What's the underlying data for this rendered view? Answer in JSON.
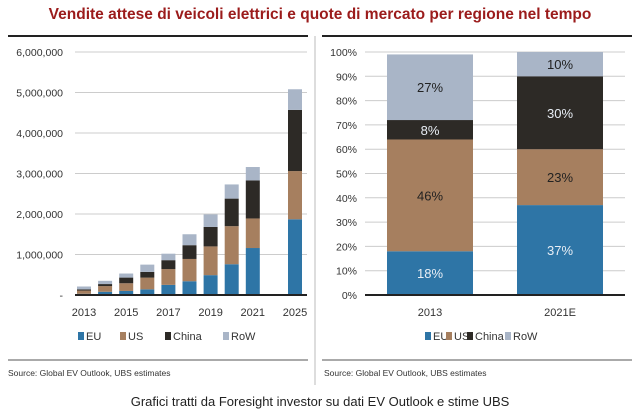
{
  "title": "Vendite attese di veicoli elettrici e quote di mercato per regione nel tempo",
  "caption": "Grafici tratti da Foresight investor su dati EV Outlook e stime UBS",
  "colors": {
    "EU": "#2e75a6",
    "US": "#a67f5f",
    "China": "#2d2a26",
    "RoW": "#a9b5c7",
    "title": "#9b1b1b"
  },
  "chart_data": [
    {
      "type": "bar",
      "stacked": true,
      "categories": [
        "2013",
        "2014",
        "2015",
        "2016",
        "2017",
        "2018",
        "2019",
        "2020",
        "2021",
        "2025"
      ],
      "tick_labels": [
        "2013",
        "2015",
        "2017",
        "2019",
        "2021",
        "2025"
      ],
      "ylim": [
        0,
        6000000
      ],
      "yticks": [
        "-",
        "1,000,000",
        "2,000,000",
        "3,000,000",
        "4,000,000",
        "5,000,000",
        "6,000,000"
      ],
      "grid": true,
      "legend_position": "bottom",
      "series": [
        {
          "name": "EU",
          "values": [
            30000,
            80000,
            100000,
            140000,
            250000,
            340000,
            490000,
            760000,
            1160000,
            1870000
          ]
        },
        {
          "name": "US",
          "values": [
            80000,
            140000,
            190000,
            290000,
            390000,
            550000,
            710000,
            940000,
            730000,
            1190000
          ]
        },
        {
          "name": "China",
          "values": [
            30000,
            50000,
            140000,
            140000,
            220000,
            340000,
            480000,
            680000,
            940000,
            1510000
          ]
        },
        {
          "name": "RoW",
          "values": [
            70000,
            80000,
            100000,
            180000,
            160000,
            270000,
            310000,
            350000,
            330000,
            510000
          ]
        }
      ],
      "source": "Source: Global EV Outlook, UBS estimates"
    },
    {
      "type": "bar",
      "stacked": true,
      "categories": [
        "2013",
        "2021E"
      ],
      "ylim": [
        0,
        100
      ],
      "yticks": [
        "0%",
        "10%",
        "20%",
        "30%",
        "40%",
        "50%",
        "60%",
        "70%",
        "80%",
        "90%",
        "100%"
      ],
      "grid": true,
      "legend_position": "bottom",
      "series": [
        {
          "name": "EU",
          "values": [
            18,
            37
          ],
          "labels": [
            "18%",
            "37%"
          ]
        },
        {
          "name": "US",
          "values": [
            46,
            23
          ],
          "labels": [
            "46%",
            "23%"
          ]
        },
        {
          "name": "China",
          "values": [
            8,
            30
          ],
          "labels": [
            "8%",
            "30%"
          ]
        },
        {
          "name": "RoW",
          "values": [
            27,
            10
          ],
          "labels": [
            "27%",
            "10%"
          ]
        }
      ],
      "source": "Source: Global EV Outlook, UBS estimates"
    }
  ]
}
